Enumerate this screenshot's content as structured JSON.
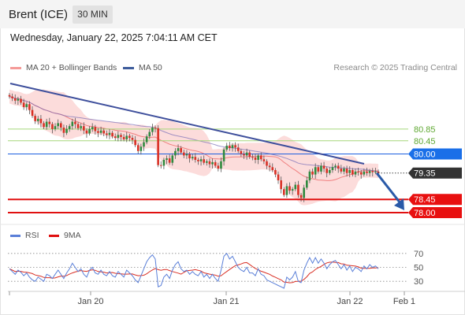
{
  "header": {
    "instrument": "Brent (ICE)",
    "timeframe": "30 MIN",
    "datetime": "Wednesday, January 22, 2025 7:04:11 AM CET"
  },
  "legend": {
    "bb_label": "MA 20 + Bollinger Bands",
    "ma50_label": "MA 50",
    "research": "Research © 2025 Trading Central"
  },
  "rsi_legend": {
    "rsi_label": "RSI",
    "ma_label": "9MA"
  },
  "colors": {
    "candle_up": "#2f8a3e",
    "candle_down": "#d93025",
    "bollinger_band": "#fbd0cf",
    "ma20": "#f08080",
    "ma50": "#7b6fb8",
    "trendline": "#3e4f9c",
    "resistance_line": "#a5d67a",
    "pivot_line": "#1c5fe0",
    "support_line": "#e01010",
    "pivot_tag": "#1a6fe8",
    "support_tag": "#e81010",
    "last_price_tag": "#333333",
    "rsi": "#5a7fd8",
    "rsi_ma": "#d93025",
    "arrow": "#2a5aa8"
  },
  "chart_data": [
    {
      "type": "candlestick",
      "title": "Brent (ICE)",
      "timeframe": "30 MIN",
      "x_ticks": [
        "Jan 20",
        "Jan 21",
        "Jan 22",
        "Feb 1"
      ],
      "y_ticks": [
        "80.85",
        "80.45",
        "80.00",
        "79.35",
        "78.45",
        "78.00"
      ],
      "ylim": [
        77.65,
        82.7
      ],
      "levels": {
        "resistance": [
          80.85,
          80.45
        ],
        "pivot": 80.0,
        "last_price": 79.35,
        "support": [
          78.45,
          78.0
        ]
      },
      "series": [
        {
          "name": "Price",
          "close": [
            81.96,
            81.9,
            81.82,
            81.88,
            81.75,
            81.6,
            81.7,
            81.5,
            81.3,
            81.12,
            81.2,
            81.05,
            80.92,
            81.1,
            81.02,
            80.85,
            80.95,
            81.05,
            80.9,
            80.72,
            80.85,
            80.95,
            81.1,
            81.02,
            80.88,
            80.95,
            80.8,
            80.7,
            80.85,
            80.92,
            80.78,
            80.72,
            80.8,
            80.7,
            80.65,
            80.72,
            80.6,
            80.55,
            80.65,
            80.58,
            80.5,
            80.62,
            80.55,
            80.48,
            80.3,
            80.1,
            80.25,
            80.4,
            80.6,
            80.75,
            80.9,
            80.88,
            79.62,
            79.6,
            79.8,
            79.85,
            79.7,
            79.95,
            80.1,
            80.2,
            80.05,
            79.95,
            80.0,
            79.85,
            79.9,
            79.8,
            79.75,
            79.82,
            79.7,
            79.75,
            79.65,
            79.72,
            79.6,
            79.5,
            79.75,
            80.15,
            80.28,
            80.2,
            80.3,
            80.22,
            80.1,
            80.0,
            79.95,
            80.05,
            79.9,
            79.88,
            79.8,
            79.95,
            79.82,
            79.75,
            79.6,
            79.55,
            79.45,
            79.3,
            79.1,
            78.8,
            78.6,
            78.9,
            78.75,
            78.8,
            78.95,
            78.6,
            78.5,
            78.85,
            79.1,
            79.4,
            79.3,
            79.55,
            79.4,
            79.6,
            79.5,
            79.35,
            79.45,
            79.55,
            79.6,
            79.5,
            79.4,
            79.5,
            79.35,
            79.45,
            79.3,
            79.4,
            79.38,
            79.3,
            79.4,
            79.35,
            79.42,
            79.38,
            79.4,
            79.35
          ]
        },
        {
          "name": "MA 20",
          "values": "computed"
        },
        {
          "name": "MA 50",
          "values": "computed"
        }
      ],
      "forecast": {
        "from": 79.35,
        "to": 78.0
      }
    },
    {
      "type": "line",
      "name": "RSI",
      "y_ticks": [
        "70",
        "50",
        "30"
      ],
      "ylim": [
        20,
        80
      ],
      "series": [
        {
          "name": "RSI",
          "values": [
            48,
            44,
            40,
            46,
            43,
            38,
            42,
            36,
            32,
            30,
            36,
            33,
            30,
            40,
            38,
            34,
            40,
            46,
            40,
            34,
            42,
            48,
            56,
            50,
            44,
            48,
            40,
            36,
            46,
            50,
            42,
            40,
            46,
            40,
            38,
            44,
            38,
            36,
            44,
            40,
            36,
            46,
            42,
            38,
            32,
            28,
            38,
            48,
            58,
            64,
            68,
            62,
            22,
            24,
            36,
            40,
            34,
            46,
            54,
            58,
            48,
            44,
            46,
            40,
            44,
            40,
            38,
            44,
            36,
            40,
            34,
            40,
            34,
            30,
            46,
            66,
            70,
            62,
            66,
            58,
            50,
            46,
            44,
            50,
            42,
            42,
            38,
            48,
            40,
            38,
            32,
            30,
            28,
            26,
            24,
            22,
            20,
            36,
            32,
            36,
            44,
            30,
            28,
            46,
            56,
            64,
            56,
            64,
            56,
            62,
            56,
            48,
            54,
            58,
            60,
            54,
            48,
            54,
            46,
            52,
            44,
            50,
            48,
            44,
            52,
            48,
            54,
            50,
            52,
            48
          ]
        },
        {
          "name": "9MA",
          "values": "computed"
        }
      ]
    }
  ]
}
